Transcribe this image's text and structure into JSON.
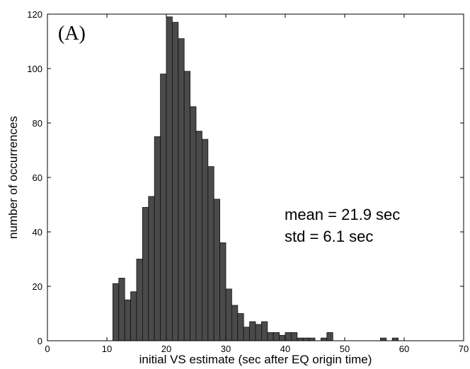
{
  "chart_data": {
    "type": "bar",
    "panel_label": "(A)",
    "xlabel": "initial VS estimate (sec after EQ origin time)",
    "ylabel": "number of occurrences",
    "xlim": [
      0,
      70
    ],
    "ylim": [
      0,
      120
    ],
    "xticks": [
      0,
      10,
      20,
      30,
      40,
      50,
      60,
      70
    ],
    "yticks": [
      0,
      20,
      40,
      60,
      80,
      100,
      120
    ],
    "grid": false,
    "bin_width": 1,
    "annotations": [
      "mean = 21.9 sec",
      "std = 6.1 sec"
    ],
    "bins": [
      {
        "x": 11,
        "count": 21
      },
      {
        "x": 12,
        "count": 23
      },
      {
        "x": 13,
        "count": 15
      },
      {
        "x": 14,
        "count": 18
      },
      {
        "x": 15,
        "count": 30
      },
      {
        "x": 16,
        "count": 49
      },
      {
        "x": 17,
        "count": 53
      },
      {
        "x": 18,
        "count": 75
      },
      {
        "x": 19,
        "count": 98
      },
      {
        "x": 20,
        "count": 119
      },
      {
        "x": 21,
        "count": 117
      },
      {
        "x": 22,
        "count": 111
      },
      {
        "x": 23,
        "count": 99
      },
      {
        "x": 24,
        "count": 86
      },
      {
        "x": 25,
        "count": 77
      },
      {
        "x": 26,
        "count": 74
      },
      {
        "x": 27,
        "count": 64
      },
      {
        "x": 28,
        "count": 52
      },
      {
        "x": 29,
        "count": 36
      },
      {
        "x": 30,
        "count": 19
      },
      {
        "x": 31,
        "count": 13
      },
      {
        "x": 32,
        "count": 10
      },
      {
        "x": 33,
        "count": 5
      },
      {
        "x": 34,
        "count": 7
      },
      {
        "x": 35,
        "count": 6
      },
      {
        "x": 36,
        "count": 7
      },
      {
        "x": 37,
        "count": 3
      },
      {
        "x": 38,
        "count": 3
      },
      {
        "x": 39,
        "count": 2
      },
      {
        "x": 40,
        "count": 3
      },
      {
        "x": 41,
        "count": 3
      },
      {
        "x": 42,
        "count": 1
      },
      {
        "x": 43,
        "count": 1
      },
      {
        "x": 44,
        "count": 1
      },
      {
        "x": 46,
        "count": 1
      },
      {
        "x": 47,
        "count": 3
      },
      {
        "x": 56,
        "count": 1
      },
      {
        "x": 58,
        "count": 1
      }
    ]
  }
}
